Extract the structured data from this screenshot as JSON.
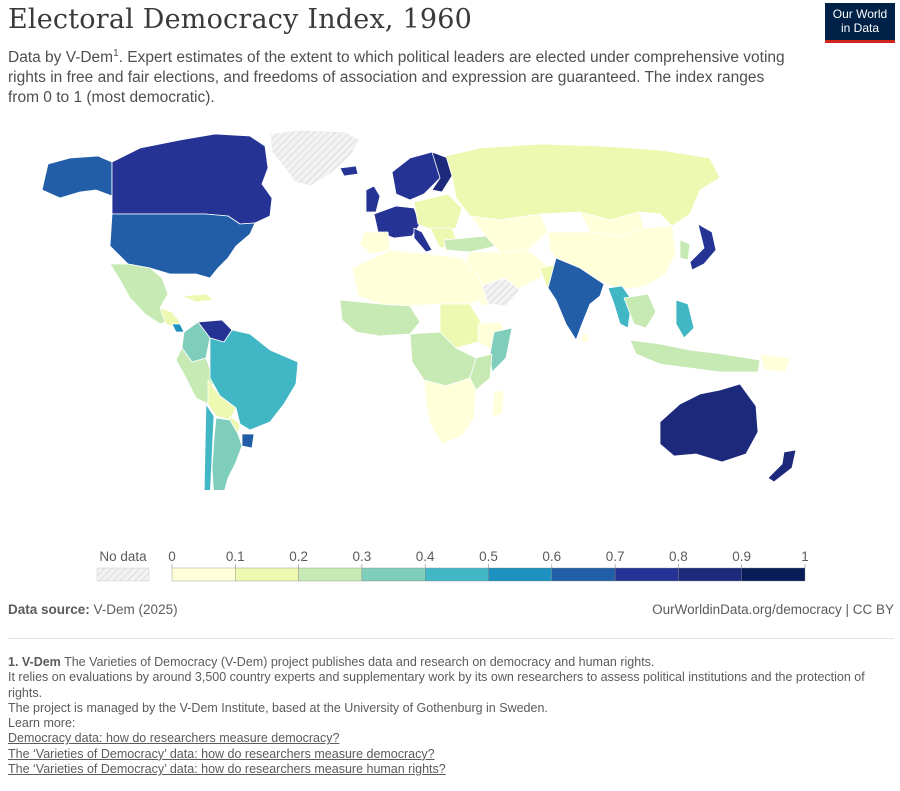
{
  "header": {
    "title": "Electoral Democracy Index, 1960",
    "subtitle_pre": "Data by V-Dem",
    "subtitle_sup": "1",
    "subtitle_post": ". Expert estimates of the extent to which political leaders are elected under comprehensive voting rights in free and fair elections, and freedoms of association and expression are guaranteed. The index ranges from 0 to 1 (most democratic).",
    "logo_line1": "Our World",
    "logo_line2": "in Data"
  },
  "colors": {
    "no_data": "#e9e9e9",
    "ocean": "#ffffff",
    "border": "#ffffff",
    "scale": [
      "#ffffd9",
      "#edf8b1",
      "#c7e9b4",
      "#7fcdbb",
      "#41b6c4",
      "#1d91c0",
      "#225ea8",
      "#253494",
      "#1d2a7c",
      "#081d58"
    ]
  },
  "legend": {
    "no_data_label": "No data",
    "ticks": [
      "0",
      "0.1",
      "0.2",
      "0.3",
      "0.4",
      "0.5",
      "0.6",
      "0.7",
      "0.8",
      "0.9",
      "1"
    ]
  },
  "map_data": {
    "variable": "Electoral Democracy Index",
    "year": "1960",
    "countries": [
      {
        "name": "Canada",
        "value": 0.86
      },
      {
        "name": "United States",
        "value": 0.7
      },
      {
        "name": "Mexico",
        "value": 0.2
      },
      {
        "name": "Venezuela",
        "value": 0.8
      },
      {
        "name": "Colombia",
        "value": 0.45
      },
      {
        "name": "Brazil",
        "value": 0.45
      },
      {
        "name": "Chile",
        "value": 0.5
      },
      {
        "name": "Argentina",
        "value": 0.3
      },
      {
        "name": "Uruguay",
        "value": 0.75
      },
      {
        "name": "Peru",
        "value": 0.3
      },
      {
        "name": "Bolivia",
        "value": 0.2
      },
      {
        "name": "Norway",
        "value": 0.85
      },
      {
        "name": "Sweden",
        "value": 0.85
      },
      {
        "name": "United Kingdom",
        "value": 0.85
      },
      {
        "name": "France",
        "value": 0.8
      },
      {
        "name": "Spain",
        "value": 0.1
      },
      {
        "name": "Italy",
        "value": 0.8
      },
      {
        "name": "Turkey",
        "value": 0.2
      },
      {
        "name": "Russia",
        "value": 0.15
      },
      {
        "name": "China",
        "value": 0.05
      },
      {
        "name": "Mongolia",
        "value": 0.1
      },
      {
        "name": "India",
        "value": 0.65
      },
      {
        "name": "Myanmar",
        "value": 0.45
      },
      {
        "name": "Japan",
        "value": 0.8
      },
      {
        "name": "Philippines",
        "value": 0.5
      },
      {
        "name": "Indonesia",
        "value": 0.15
      },
      {
        "name": "Australia",
        "value": 0.85
      },
      {
        "name": "New Zealand",
        "value": 0.85
      },
      {
        "name": "Somalia",
        "value": 0.45
      },
      {
        "name": "Sudan",
        "value": 0.15
      },
      {
        "name": "Congo (Kinshasa)",
        "value": 0.15
      },
      {
        "name": "South Africa",
        "value": 0.15
      }
    ]
  },
  "footer": {
    "source_label": "Data source:",
    "source_value": "V-Dem (2025)",
    "url": "OurWorldinData.org/democracy",
    "license": "| CC BY",
    "note_title": "1. V-Dem",
    "note_line1": "The Varieties of Democracy (V-Dem) project publishes data and research on democracy and human rights.",
    "note_line2": "It relies on evaluations by around 3,500 country experts and supplementary work by its own researchers to assess political institutions and the protection of rights.",
    "note_line3": "The project is managed by the V-Dem Institute, based at the University of Gothenburg in Sweden.",
    "learn_more": "Learn more:",
    "links": [
      "Democracy data: how do researchers measure democracy?",
      "The ‘Varieties of Democracy’ data: how do researchers measure democracy?",
      "The ‘Varieties of Democracy’ data: how do researchers measure human rights?"
    ]
  }
}
